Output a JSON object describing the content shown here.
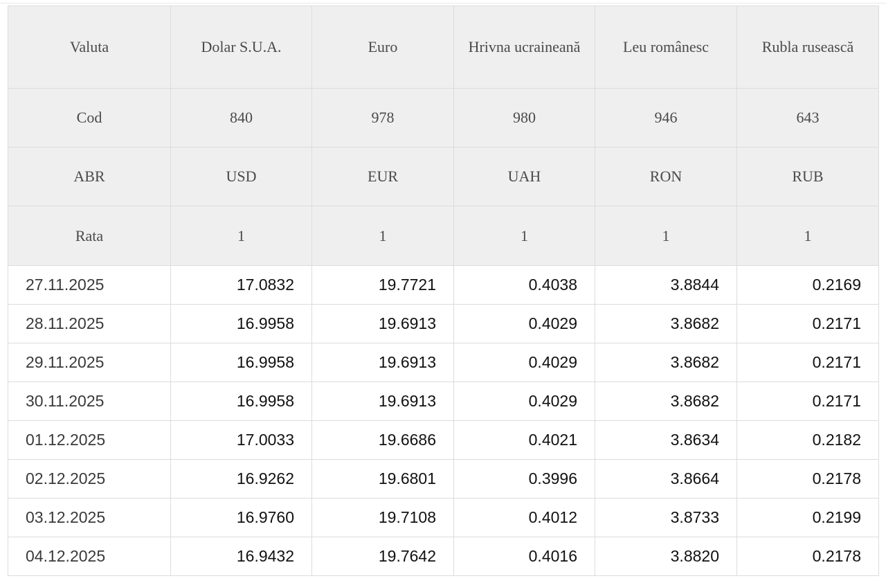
{
  "header": {
    "valuta": [
      "Valuta",
      "Dolar S.U.A.",
      "Euro",
      "Hrivna ucraineană",
      "Leu românesc",
      "Rubla rusească"
    ],
    "cod": [
      "Cod",
      "840",
      "978",
      "980",
      "946",
      "643"
    ],
    "abr": [
      "ABR",
      "USD",
      "EUR",
      "UAH",
      "RON",
      "RUB"
    ],
    "rata": [
      "Rata",
      "1",
      "1",
      "1",
      "1",
      "1"
    ]
  },
  "rows": [
    [
      "27.11.2025",
      "17.0832",
      "19.7721",
      "0.4038",
      "3.8844",
      "0.2169"
    ],
    [
      "28.11.2025",
      "16.9958",
      "19.6913",
      "0.4029",
      "3.8682",
      "0.2171"
    ],
    [
      "29.11.2025",
      "16.9958",
      "19.6913",
      "0.4029",
      "3.8682",
      "0.2171"
    ],
    [
      "30.11.2025",
      "16.9958",
      "19.6913",
      "0.4029",
      "3.8682",
      "0.2171"
    ],
    [
      "01.12.2025",
      "17.0033",
      "19.6686",
      "0.4021",
      "3.8634",
      "0.2182"
    ],
    [
      "02.12.2025",
      "16.9262",
      "19.6801",
      "0.3996",
      "3.8664",
      "0.2178"
    ],
    [
      "03.12.2025",
      "16.9760",
      "19.7108",
      "0.4012",
      "3.8733",
      "0.2199"
    ],
    [
      "04.12.2025",
      "16.9432",
      "19.7642",
      "0.4016",
      "3.8820",
      "0.2178"
    ]
  ]
}
